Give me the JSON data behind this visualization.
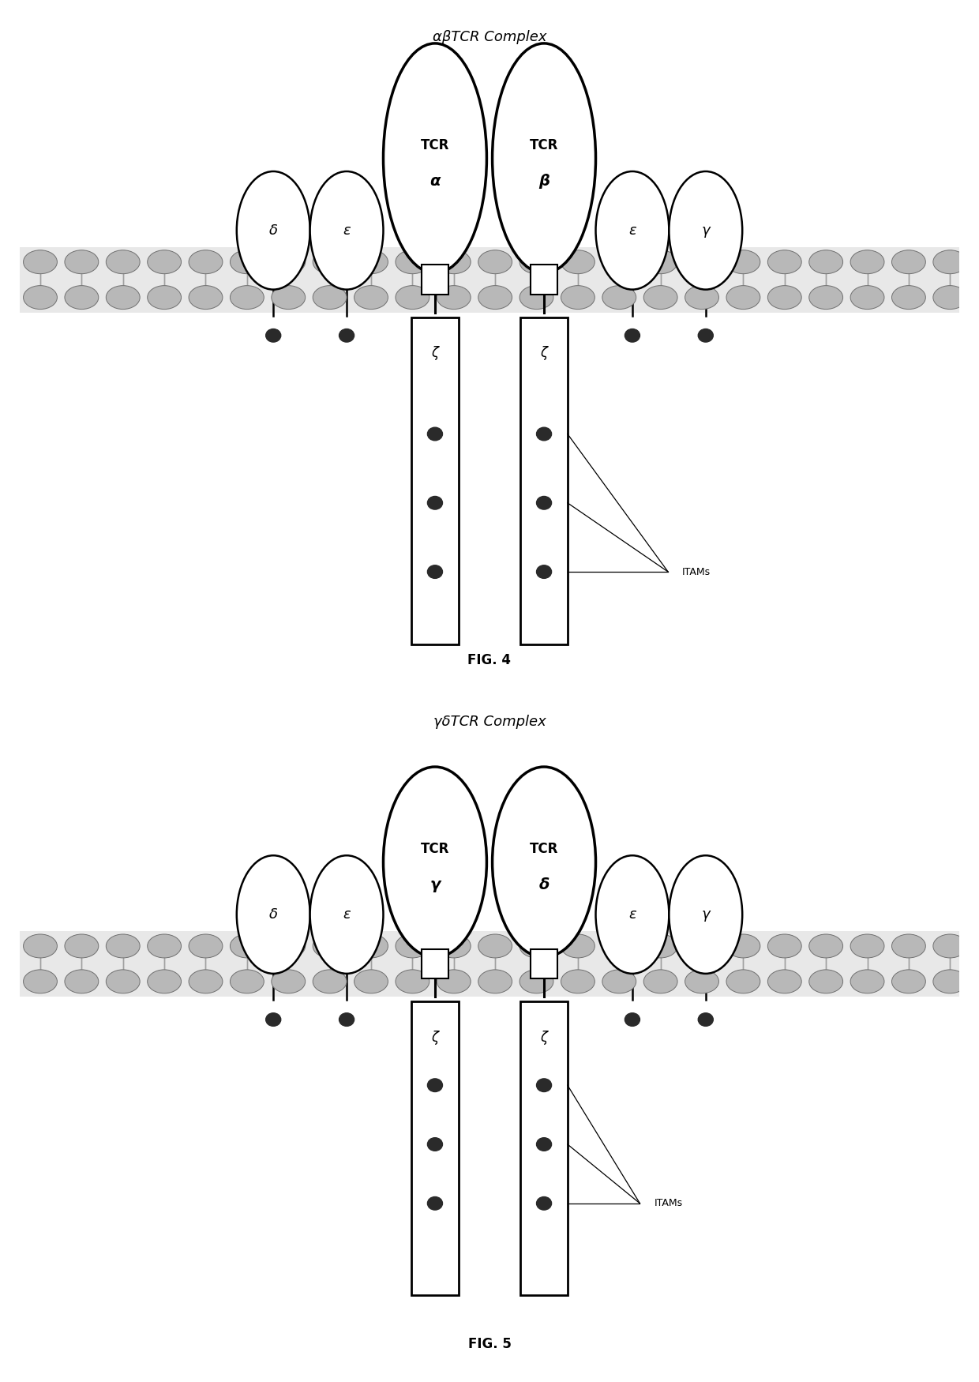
{
  "fig_width": 12.4,
  "fig_height": 17.5,
  "bg_color": "#ffffff",
  "fig4_title": "αβTCR Complex",
  "fig5_title": "γδTCR Complex",
  "fig4_label": "FIG. 4",
  "fig5_label": "FIG. 5",
  "fig4_tcr_left_line1": "TCR",
  "fig4_tcr_left_line2": "α",
  "fig4_tcr_right_line1": "TCR",
  "fig4_tcr_right_line2": "β",
  "fig5_tcr_left_line1": "TCR",
  "fig5_tcr_left_line2": "γ",
  "fig5_tcr_right_line1": "TCR",
  "fig5_tcr_right_line2": "δ",
  "zeta_label": "ζ",
  "itams_label": "ITAMs",
  "greek_delta": "δ",
  "greek_epsilon": "ε",
  "greek_gamma": "γ",
  "dot_color": "#2a2a2a",
  "line_color": "#000000",
  "membrane_head_color": "#b8b8b8",
  "membrane_head_edge": "#707070",
  "membrane_bg": "#e8e8e8"
}
